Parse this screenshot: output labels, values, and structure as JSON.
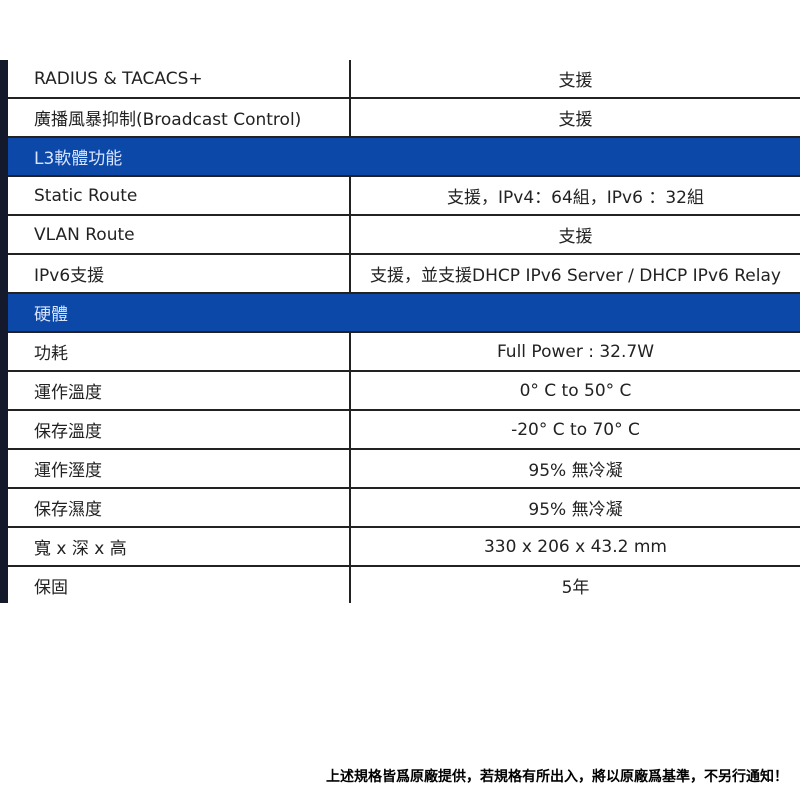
{
  "rows_a": [
    {
      "k": "RADIUS & TACACS+",
      "v": "支援"
    },
    {
      "k": "廣播風暴抑制(Broadcast Control)",
      "v": "支援"
    }
  ],
  "section_l3": "L3軟體功能",
  "rows_b": [
    {
      "k": "Static Route",
      "v": "支援，IPv4：64組，IPv6 ：32組"
    },
    {
      "k": "VLAN Route",
      "v": "支援"
    },
    {
      "k": "IPv6支援",
      "v": "支援，並支援DHCP IPv6 Server / DHCP IPv6 Relay"
    }
  ],
  "section_hw": "硬體",
  "rows_c": [
    {
      "k": "功耗",
      "v": "Full Power : 32.7W"
    },
    {
      "k": "運作溫度",
      "v": "0° C to 50° C"
    },
    {
      "k": "保存溫度",
      "v": "-20° C to 70° C"
    },
    {
      "k": "運作溼度",
      "v": "95% 無冷凝"
    },
    {
      "k": "保存濕度",
      "v": "95% 無冷凝"
    },
    {
      "k": "寬 x 深 x 高",
      "v": "330 x 206 x 43.2 mm"
    },
    {
      "k": "保固",
      "v": "5年"
    }
  ],
  "note": "上述規格皆爲原廠提供，若規格有所出入，將以原廠爲基準，不另行通知！"
}
